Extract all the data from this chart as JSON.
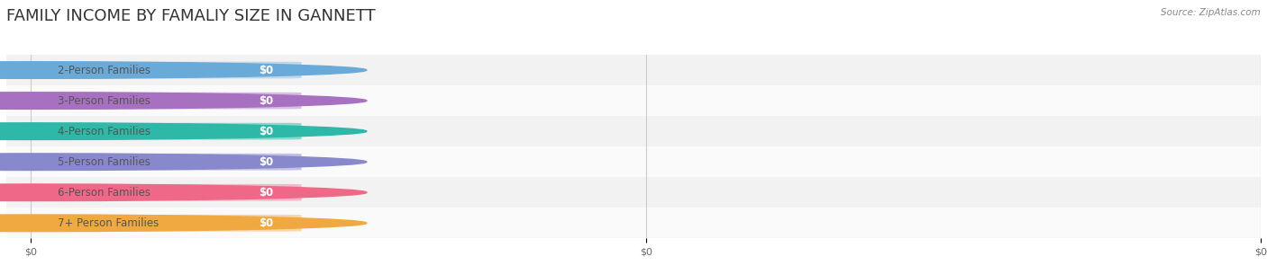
{
  "title": "FAMILY INCOME BY FAMALIY SIZE IN GANNETT",
  "source": "Source: ZipAtlas.com",
  "categories": [
    "2-Person Families",
    "3-Person Families",
    "4-Person Families",
    "5-Person Families",
    "6-Person Families",
    "7+ Person Families"
  ],
  "values": [
    0,
    0,
    0,
    0,
    0,
    0
  ],
  "bar_colors": [
    "#aacce8",
    "#c8a8d8",
    "#5ecec0",
    "#aaaade",
    "#f5a0b8",
    "#f8c888"
  ],
  "dot_colors": [
    "#6aaad8",
    "#a870c0",
    "#2db8a8",
    "#8888cc",
    "#f06888",
    "#f0a840"
  ],
  "background_color": "#ffffff",
  "row_bg_colors": [
    "#f2f2f2",
    "#fafafa"
  ],
  "title_fontsize": 13,
  "label_fontsize": 8.5,
  "value_fontsize": 8.5,
  "source_fontsize": 7.5,
  "tick_fontsize": 8
}
